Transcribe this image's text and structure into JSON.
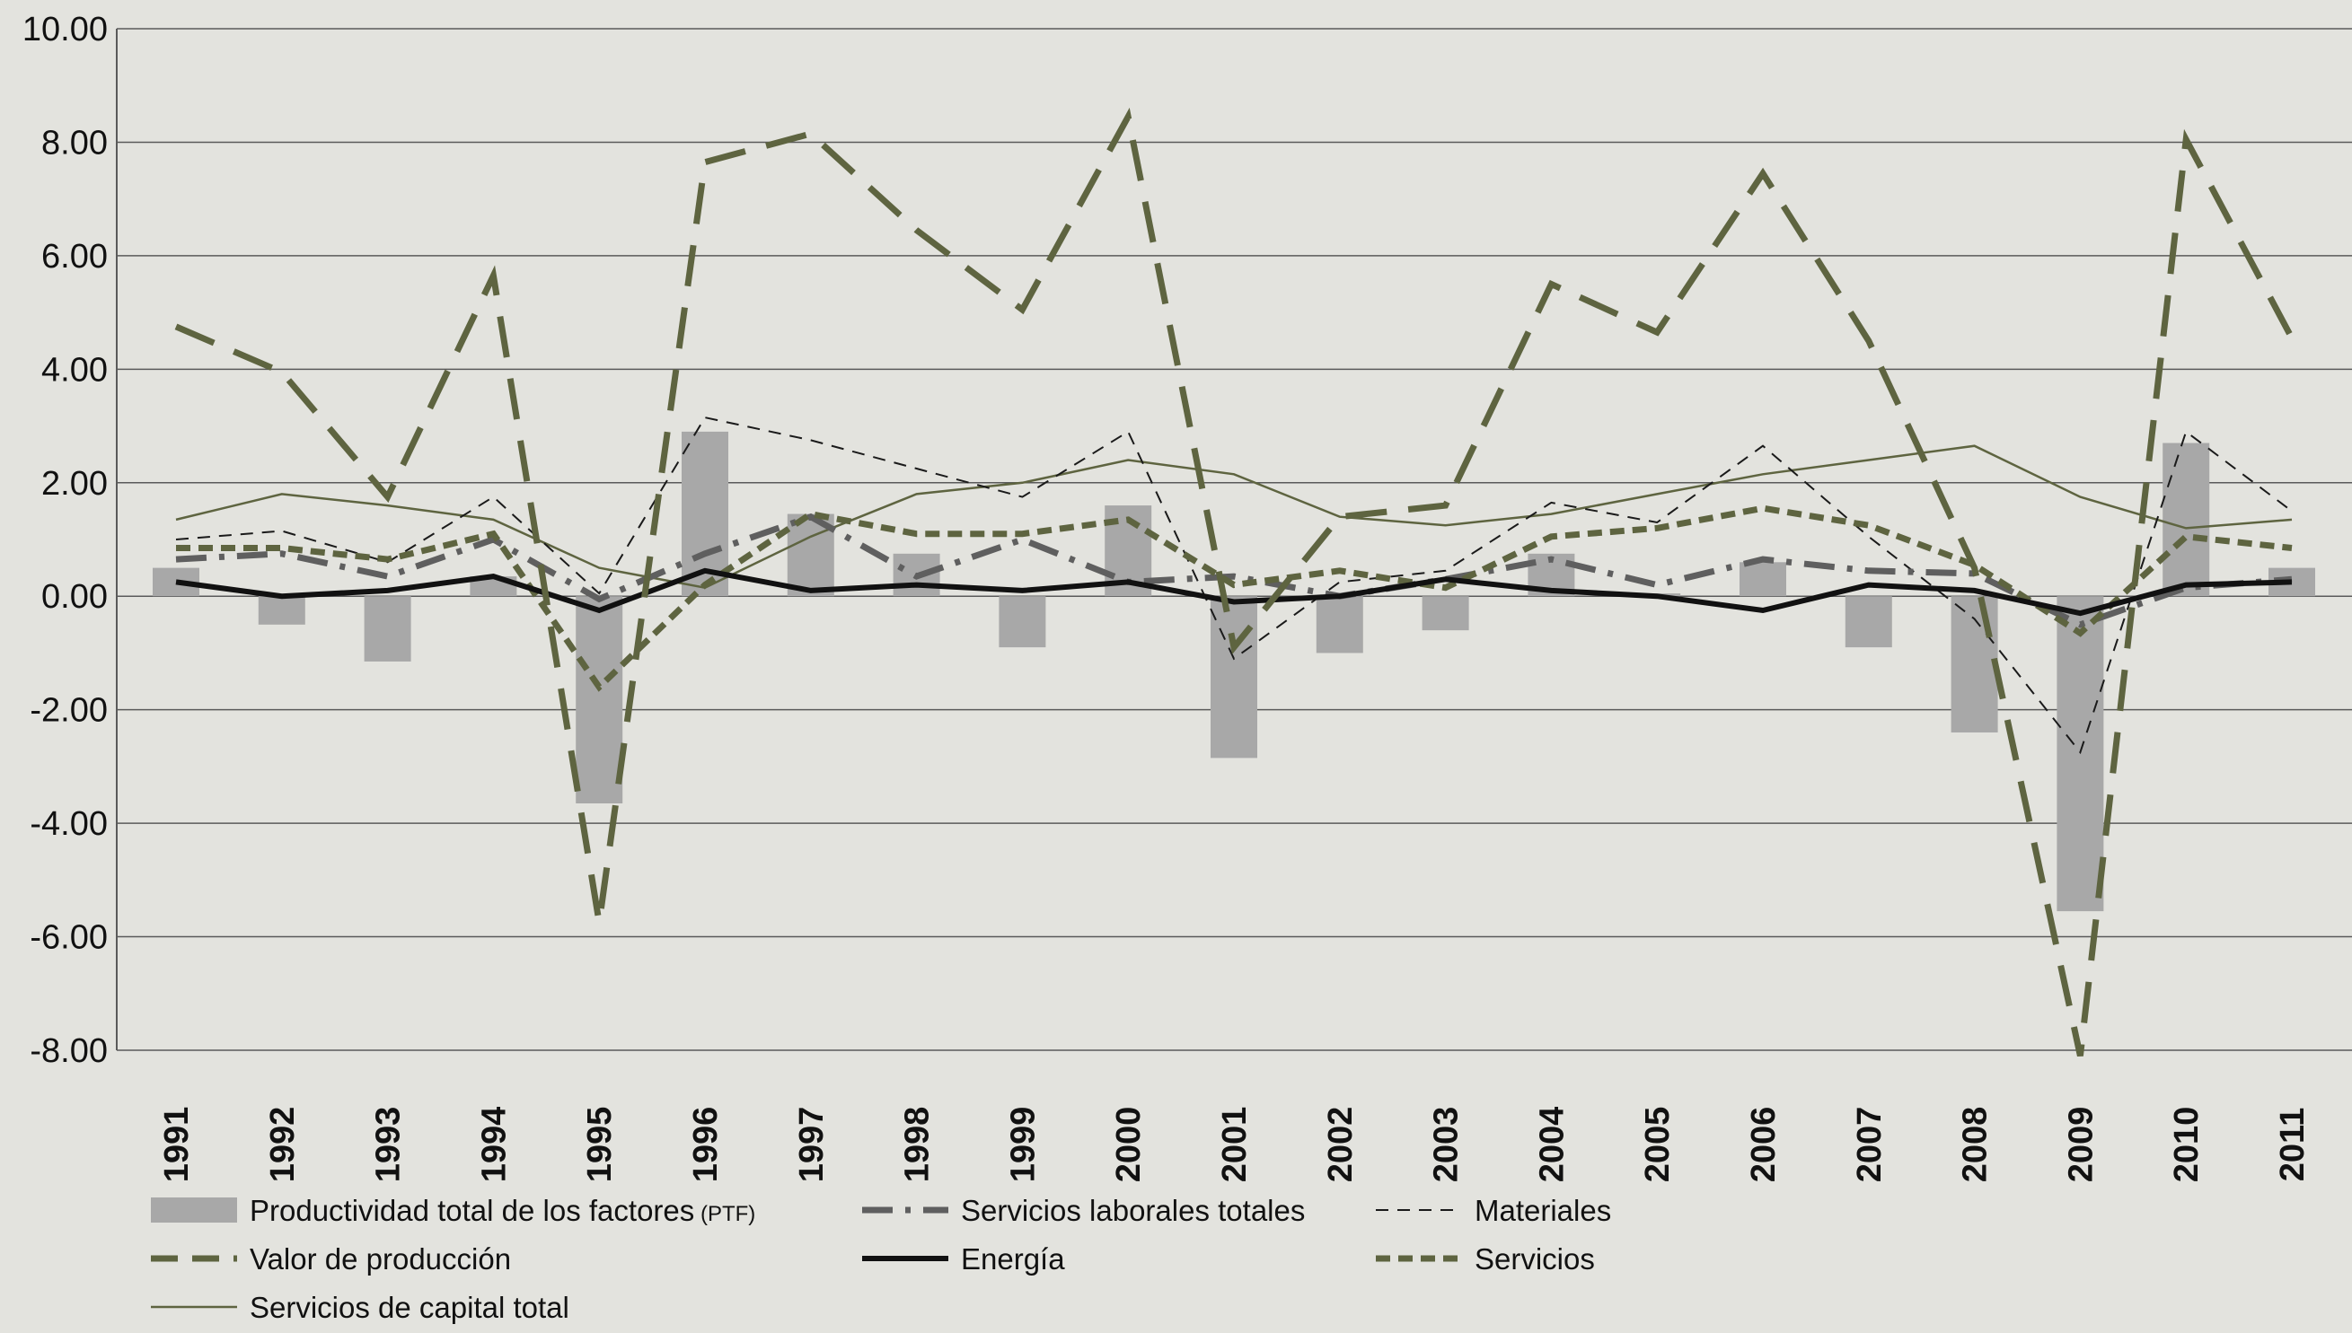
{
  "chart_data": {
    "type": "bar",
    "title": "",
    "xlabel": "",
    "ylabel": "",
    "ylim": [
      -8,
      10
    ],
    "yticks": [
      "10.00",
      "8.00",
      "6.00",
      "4.00",
      "2.00",
      "0.00",
      "-2.00",
      "-4.00",
      "-6.00",
      "-8.00"
    ],
    "grid": "horizontal",
    "legend_position": "bottom",
    "categories": [
      "1991",
      "1992",
      "1993",
      "1994",
      "1995",
      "1996",
      "1997",
      "1998",
      "1999",
      "2000",
      "2001",
      "2002",
      "2003",
      "2004",
      "2005",
      "2006",
      "2007",
      "2008",
      "2009",
      "2010",
      "2011"
    ],
    "bar_series": {
      "name": "Productividad total de los factores",
      "name_suffix": "(PTF)",
      "color": "#a8a8a8",
      "values": [
        0.5,
        -0.5,
        -1.15,
        0.35,
        -3.65,
        2.9,
        1.45,
        0.75,
        -0.9,
        1.6,
        -2.85,
        -1.0,
        -0.6,
        0.75,
        0.05,
        0.6,
        -0.9,
        -2.4,
        -5.55,
        2.7,
        0.5
      ]
    },
    "series": [
      {
        "name": "Valor de producción",
        "style": "long-dash",
        "color": "#5e6440",
        "width": 7,
        "values": [
          4.75,
          3.95,
          1.75,
          5.65,
          -5.75,
          7.65,
          8.15,
          6.45,
          5.05,
          8.45,
          -0.9,
          1.4,
          1.6,
          5.5,
          4.65,
          7.45,
          4.5,
          0.5,
          -8.1,
          8.05,
          4.55
        ]
      },
      {
        "name": "Servicios laborales totales",
        "style": "dash-dot",
        "color": "#5f5f5f",
        "width": 7,
        "values": [
          0.65,
          0.75,
          0.35,
          1.0,
          -0.05,
          0.75,
          1.4,
          0.35,
          1.0,
          0.25,
          0.35,
          0.0,
          0.3,
          0.65,
          0.2,
          0.65,
          0.45,
          0.4,
          -0.5,
          0.15,
          0.3
        ]
      },
      {
        "name": "Materiales",
        "style": "short-dash",
        "color": "#1a1a1a",
        "width": 2,
        "values": [
          1.0,
          1.15,
          0.6,
          1.75,
          0.05,
          3.15,
          2.75,
          2.25,
          1.75,
          2.9,
          -1.1,
          0.25,
          0.45,
          1.65,
          1.3,
          2.65,
          1.05,
          -0.4,
          -2.75,
          2.9,
          1.5
        ]
      },
      {
        "name": "Energía",
        "style": "solid",
        "color": "#111111",
        "width": 6,
        "values": [
          0.25,
          0.0,
          0.1,
          0.35,
          -0.25,
          0.45,
          0.1,
          0.2,
          0.1,
          0.25,
          -0.1,
          0.0,
          0.3,
          0.1,
          0.0,
          -0.25,
          0.2,
          0.1,
          -0.3,
          0.2,
          0.25
        ]
      },
      {
        "name": "Servicios",
        "style": "dotted-dash",
        "color": "#5e6440",
        "width": 7,
        "values": [
          0.85,
          0.85,
          0.65,
          1.1,
          -1.6,
          0.2,
          1.45,
          1.1,
          1.1,
          1.35,
          0.2,
          0.45,
          0.15,
          1.05,
          1.2,
          1.55,
          1.25,
          0.55,
          -0.65,
          1.05,
          0.85
        ]
      },
      {
        "name": "Servicios de capital total",
        "style": "thin-solid",
        "color": "#5e6440",
        "width": 2.5,
        "values": [
          1.35,
          1.8,
          1.6,
          1.35,
          0.5,
          0.15,
          1.05,
          1.8,
          2.0,
          2.4,
          2.15,
          1.4,
          1.25,
          1.45,
          1.8,
          2.15,
          2.4,
          2.65,
          1.75,
          1.2,
          1.35
        ]
      }
    ]
  }
}
